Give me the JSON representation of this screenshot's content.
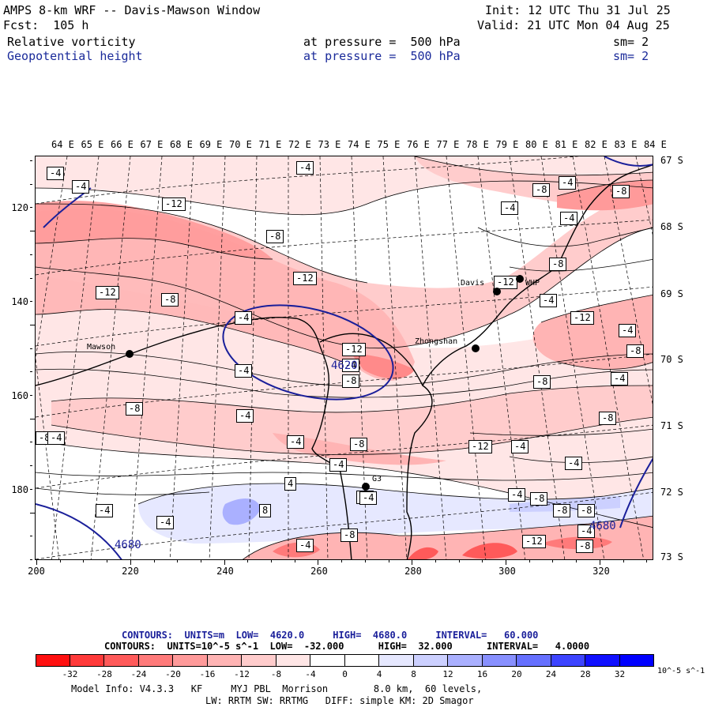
{
  "header": {
    "title": "AMPS 8-km WRF -- Davis-Mawson Window",
    "init": "Init: 12 UTC Thu 31 Jul 25",
    "fcst": "Fcst:  105 h",
    "valid": "Valid: 21 UTC Mon 04 Aug 25",
    "field1": "Relative vorticity",
    "field1_level": "at pressure =  500 hPa",
    "field1_sm": "sm= 2",
    "field2": "Geopotential height",
    "field2_level": "at pressure =  500 hPa",
    "field2_sm": "sm= 2"
  },
  "longitude_labels": [
    "64 E",
    "65 E",
    "66 E",
    "67 E",
    "68 E",
    "69 E",
    "70 E",
    "71 E",
    "72 E",
    "73 E",
    "74 E",
    "75 E",
    "76 E",
    "77 E",
    "78 E",
    "79 E",
    "80 E",
    "81 E",
    "82 E",
    "83 E",
    "84 E"
  ],
  "latitude_labels": [
    "67 S",
    "68 S",
    "69 S",
    "70 S",
    "71 S",
    "72 S",
    "73 S"
  ],
  "y_axis_labels": [
    "120",
    "140",
    "160",
    "180"
  ],
  "x_axis_labels": [
    "200",
    "220",
    "240",
    "260",
    "280",
    "300",
    "320"
  ],
  "stations": [
    {
      "name": "Davis"
    },
    {
      "name": "Mawson"
    },
    {
      "name": "Zhongshan"
    },
    {
      "name": "WHP"
    },
    {
      "name": "G3"
    }
  ],
  "contour_labels": [
    "-4",
    "-4",
    "-4",
    "-8",
    "-4",
    "-12",
    "-12",
    "-8",
    "-12",
    "-8",
    "-4",
    "-8",
    "-4",
    "-4",
    "-8",
    "-12",
    "-4",
    "-12",
    "-4",
    "-8",
    "-8",
    "-4",
    "-8",
    "-4",
    "-4",
    "-12",
    "-4",
    "-8",
    "-8",
    "-4",
    "-4",
    "-8",
    "-8",
    "-4",
    "-4",
    "-4",
    "-8",
    "-4",
    "-8",
    "-4",
    "4",
    "8",
    "-4",
    "-8",
    "-12",
    "-8",
    "-4",
    "-4",
    "-8",
    "-4",
    "-12",
    "-4"
  ],
  "height_labels": [
    "4620",
    "4680",
    "4680"
  ],
  "contour_info": {
    "line1": "CONTOURS:  UNITS=m  LOW=  4620.0     HIGH=  4680.0     INTERVAL=   60.000",
    "line2": "CONTOURS:  UNITS=10^-5 s^-1  LOW=  -32.000      HIGH=  32.000      INTERVAL=   4.0000"
  },
  "colorbar": {
    "labels": [
      "-32",
      "-28",
      "-24",
      "-20",
      "-16",
      "-12",
      "-8",
      "-4",
      "0",
      "4",
      "8",
      "12",
      "16",
      "20",
      "24",
      "28",
      "32"
    ],
    "unit": "10^-5 s^-1",
    "colors": [
      "#ff1010",
      "#ff3a3a",
      "#ff5a5a",
      "#ff7a7a",
      "#ff9a9a",
      "#ffb4b4",
      "#ffcccc",
      "#ffe6e6",
      "#ffffff",
      "#ffffff",
      "#e6e8ff",
      "#ccd0ff",
      "#aab0ff",
      "#8890ff",
      "#6670ff",
      "#3d44ff",
      "#1010ff"
    ]
  },
  "model_info": {
    "line1": "Model Info: V4.3.3   KF     MYJ PBL  Morrison        8.0 km,  60 levels,",
    "line2": "LW: RRTM SW: RRTMG   DIFF: simple KM: 2D Smagor"
  }
}
